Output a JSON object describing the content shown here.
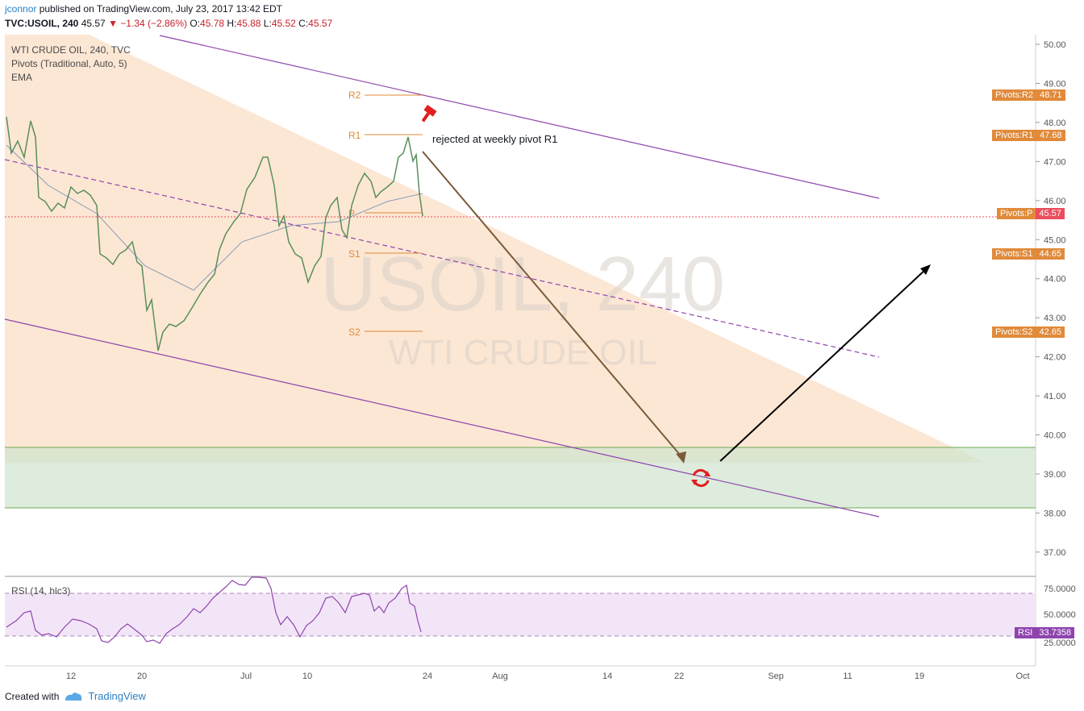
{
  "header": {
    "user": "jconnor",
    "published": " published on TradingView.com, July 23, 2017 13:42 EDT",
    "symbol": "TVC:USOIL, 240",
    "last": "45.57",
    "change": "▼ −1.34 (−2.86%)",
    "o_label": "O:",
    "o_val": "45.78",
    "h_label": "H:",
    "h_val": "45.88",
    "l_label": "L:",
    "l_val": "45.52",
    "c_label": "C:",
    "c_val": "45.57"
  },
  "legend": {
    "line1": "WTI CRUDE OIL, 240, TVC",
    "line2": "Pivots (Traditional, Auto, 5)",
    "line3": "EMA"
  },
  "watermark": {
    "line1": "USOIL, 240",
    "line2": "WTI CRUDE OIL"
  },
  "pivots": {
    "R2": {
      "label": "R2",
      "tag": "Pivots:R2",
      "value": "48.71"
    },
    "R1": {
      "label": "R1",
      "tag": "Pivots:R1",
      "value": "47.68"
    },
    "P": {
      "label": "P",
      "tag": "Pivots:P",
      "value": "45.57"
    },
    "S1": {
      "label": "S1",
      "tag": "Pivots:S1",
      "value": "44.65"
    },
    "S2": {
      "label": "S2",
      "tag": "Pivots:S2",
      "value": "42.65"
    }
  },
  "annotation": "rejected at weekly pivot R1",
  "price_axis": [
    "50.00",
    "49.00",
    "48.00",
    "47.00",
    "46.00",
    "45.00",
    "44.00",
    "43.00",
    "42.00",
    "41.00",
    "40.00",
    "39.00",
    "38.00",
    "37.00"
  ],
  "time_axis": [
    "12",
    "20",
    "Jul",
    "10",
    "24",
    "Aug",
    "14",
    "22",
    "Sep",
    "11",
    "19",
    "Oct"
  ],
  "rsi": {
    "legend": "RSI (14, hlc3)",
    "tag": "RSI",
    "value": "33.7358",
    "axis": [
      "75.0000",
      "50.0000",
      "25.0000"
    ]
  },
  "footer": {
    "created": "Created with",
    "brand": "TradingView"
  },
  "colors": {
    "up": "#53b987",
    "down": "#eb4d5c",
    "channel": "#8e44ad",
    "pivot": "#e08a3a",
    "rsi": "#8e44ad"
  }
}
